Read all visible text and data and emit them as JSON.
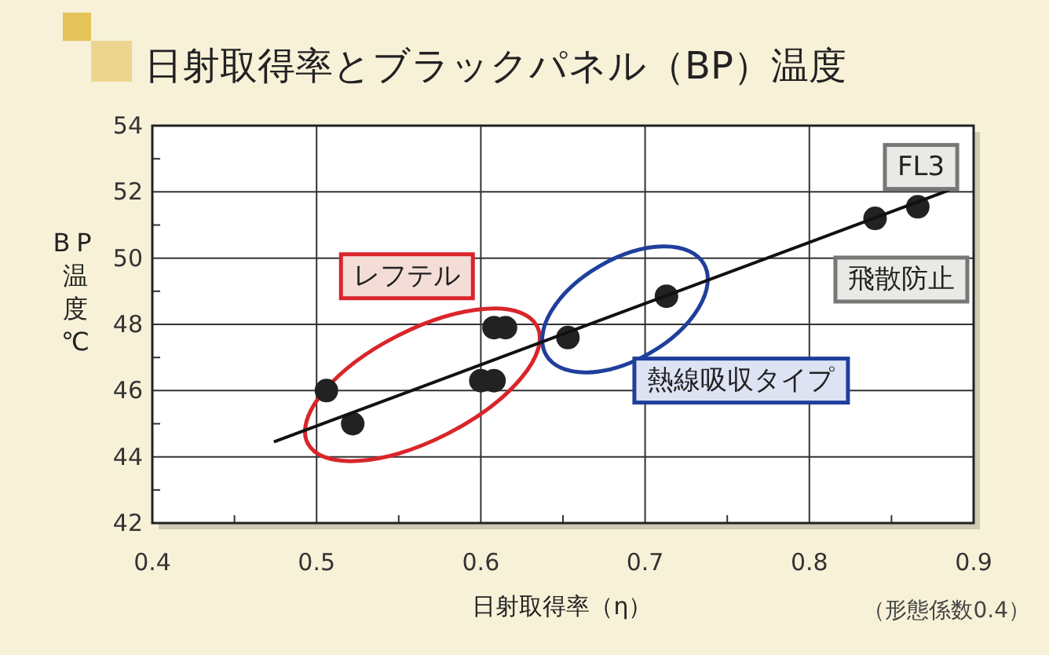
{
  "chart_data": {
    "type": "scatter",
    "title": "日射取得率とブラックパネル（BP）温度",
    "xlabel": "日射取得率（η）",
    "ylabel": "BP温度℃",
    "series": [
      {
        "type": "scatter",
        "color": "#222222",
        "marker": "circle",
        "x": [
          0.506,
          0.522,
          0.6,
          0.608,
          0.608,
          0.615,
          0.653,
          0.713,
          0.84,
          0.866
        ],
        "values": [
          46.0,
          45.0,
          46.3,
          46.3,
          47.9,
          47.9,
          47.6,
          48.85,
          51.2,
          51.55
        ]
      },
      {
        "type": "line",
        "color": "#111111",
        "marker": "none",
        "line_style": "solid",
        "x": [
          0.474,
          0.885
        ],
        "values": [
          44.45,
          52.05
        ]
      }
    ],
    "xlim": [
      0.4,
      0.9
    ],
    "ylim": [
      42,
      54
    ],
    "xticks": [
      0.4,
      {
        "value": 0.45,
        "label": null
      },
      0.5,
      {
        "value": 0.55,
        "label": null
      },
      0.6,
      {
        "value": 0.65,
        "label": null
      },
      0.7,
      {
        "value": 0.75,
        "label": null
      },
      0.8,
      {
        "value": 0.85,
        "label": null
      },
      0.9
    ],
    "yticks": [
      42,
      {
        "value": 43,
        "label": null
      },
      44,
      {
        "value": 45,
        "label": null
      },
      46,
      {
        "value": 47,
        "label": null
      },
      48,
      {
        "value": 49,
        "label": null
      },
      50,
      {
        "value": 51,
        "label": null
      },
      52,
      {
        "value": 53,
        "label": null
      },
      54
    ],
    "grid": true,
    "annotations": [
      "レフテル",
      "熱線吸収タイプ",
      "飛散防止",
      "FL3",
      "（形態係数0.4）"
    ]
  }
}
